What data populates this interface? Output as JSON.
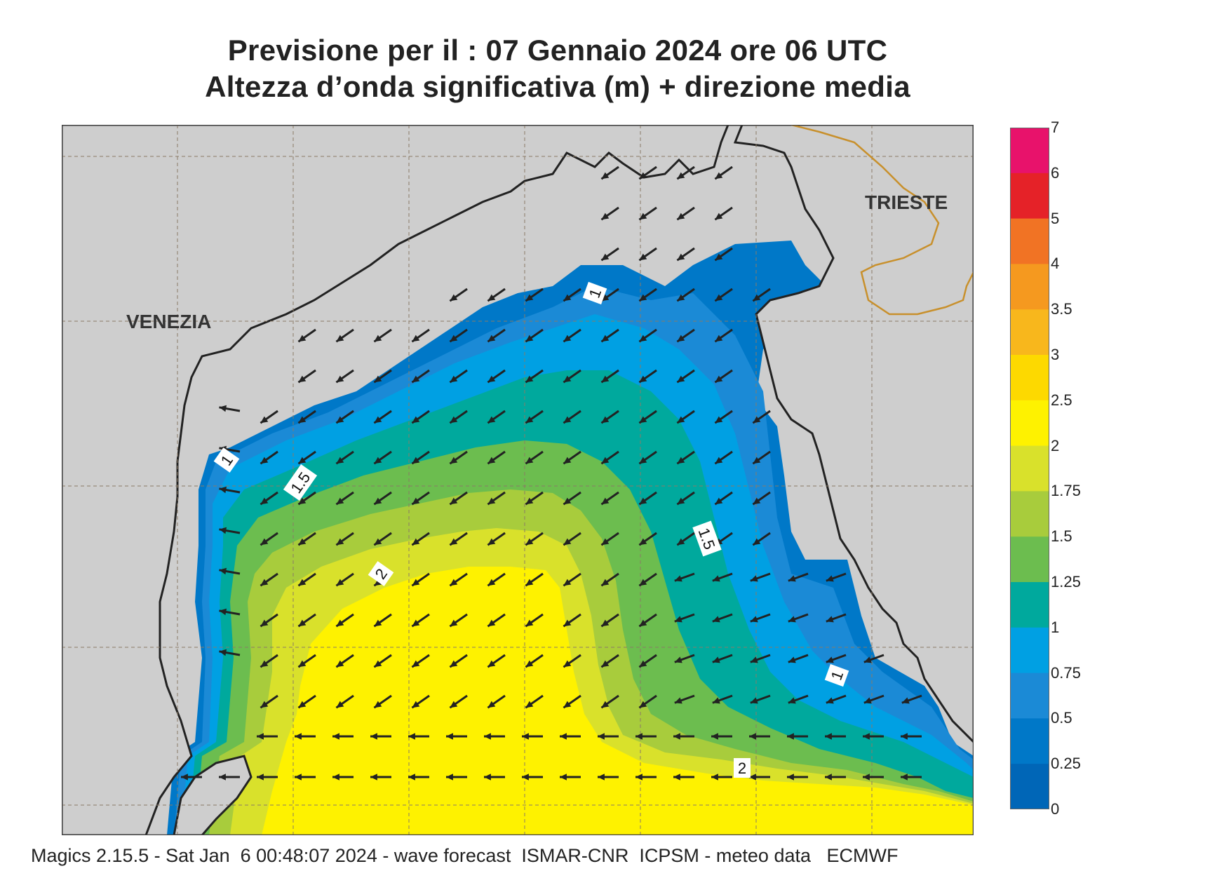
{
  "title": {
    "line1": "Previsione per il  :  07  Gennaio  2024   ore 06 UTC",
    "line2": "Altezza d’onda significativa (m) + direzione media"
  },
  "cities": {
    "venezia": "VENEZIA",
    "trieste": "TRIESTE"
  },
  "contour_labels": [
    "1",
    "1.5",
    "2"
  ],
  "colorbar": {
    "labels": [
      "7",
      "6",
      "5",
      "4",
      "3.5",
      "3",
      "2.5",
      "2",
      "1.75",
      "1.5",
      "1.25",
      "1",
      "0.75",
      "0.5",
      "0.25",
      "0"
    ],
    "colors": [
      "#e8126b",
      "#e52228",
      "#f17324",
      "#f5991f",
      "#f8b71c",
      "#fdd900",
      "#fef200",
      "#d9e12b",
      "#a8cc3c",
      "#6cbd4f",
      "#00a99d",
      "#00a0e3",
      "#1b8ad6",
      "#0078c8",
      "#0066b7"
    ]
  },
  "colors": {
    "land": "#cecece",
    "coast": "#222222",
    "border": "#c8902c",
    "arrow": "#222222"
  },
  "footer": "Magics 2.15.5 - Sat Jan  6 00:48:07 2024 - wave forecast  ISMAR-CNR  ICPSM - meteo data   ECMWF"
}
